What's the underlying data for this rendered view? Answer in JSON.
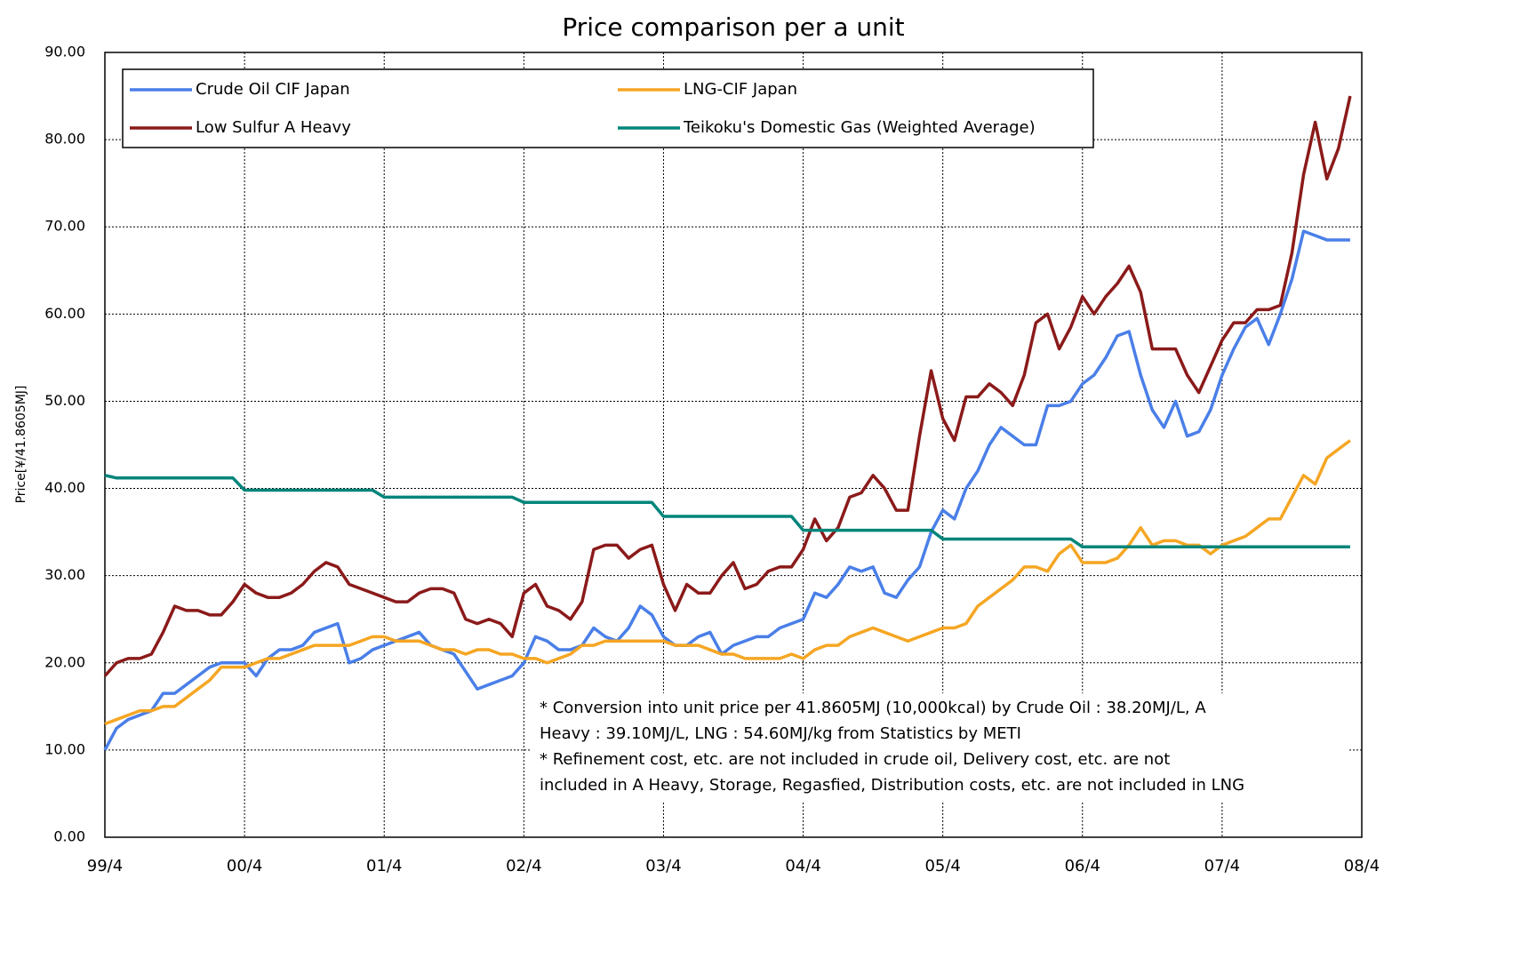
{
  "chart_data": {
    "type": "line",
    "title": "Price comparison per a unit",
    "y_label": "Price[¥/41.8605MJ]",
    "annotation": [
      "* Conversion into unit price per 41.8605MJ (10,000kcal) by Crude Oil : 38.20MJ/L, A",
      "Heavy : 39.10MJ/L, LNG : 54.60MJ/kg from Statistics by METI",
      "* Refinement cost, etc. are not included in crude oil, Delivery cost, etc. are not",
      "included in A Heavy, Storage, Regasfied, Distribution costs, etc. are not included in LNG"
    ],
    "categories": [
      "99/4",
      null,
      null,
      null,
      null,
      null,
      null,
      null,
      null,
      null,
      null,
      null,
      "00/4",
      null,
      null,
      null,
      null,
      null,
      null,
      null,
      null,
      null,
      null,
      null,
      "01/4",
      null,
      null,
      null,
      null,
      null,
      null,
      null,
      null,
      null,
      null,
      null,
      "02/4",
      null,
      null,
      null,
      null,
      null,
      null,
      null,
      null,
      null,
      null,
      null,
      "03/4",
      null,
      null,
      null,
      null,
      null,
      null,
      null,
      null,
      null,
      null,
      null,
      "04/4",
      null,
      null,
      null,
      null,
      null,
      null,
      null,
      null,
      null,
      null,
      null,
      "05/4",
      null,
      null,
      null,
      null,
      null,
      null,
      null,
      null,
      null,
      null,
      null,
      "06/4",
      null,
      null,
      null,
      null,
      null,
      null,
      null,
      null,
      null,
      null,
      null,
      "07/4",
      null,
      null,
      null,
      null,
      null,
      null,
      null,
      null,
      null,
      null,
      null,
      "08/4"
    ],
    "series": [
      {
        "name": "Crude Oil CIF Japan",
        "color": "#4a7fe8",
        "values": [
          10,
          12.5,
          13.5,
          14,
          14.5,
          16.5,
          16.5,
          17.5,
          18.5,
          19.5,
          20,
          20,
          20,
          18.5,
          20.5,
          21.5,
          21.5,
          22,
          23.5,
          24,
          24.5,
          20,
          20.5,
          21.5,
          22,
          22.5,
          23,
          23.5,
          22,
          21.5,
          21,
          19,
          17,
          17.5,
          18,
          18.5,
          20,
          23,
          22.5,
          21.5,
          21.5,
          22,
          24,
          23,
          22.5,
          24,
          26.5,
          25.5,
          23,
          22,
          22,
          23,
          23.5,
          21,
          22,
          22.5,
          23,
          23,
          24,
          24.5,
          25,
          28,
          27.5,
          29,
          31,
          30.5,
          31,
          28,
          27.5,
          29.5,
          31,
          35,
          37.5,
          36.5,
          40,
          42,
          45,
          47,
          46,
          45,
          45,
          49.5,
          49.5,
          50,
          52,
          53,
          55,
          57.5,
          58,
          53,
          49,
          47,
          50,
          46,
          46.5,
          49,
          53,
          56,
          58.5,
          59.5,
          56.5,
          60,
          64,
          69.5,
          69,
          68.5,
          68.5,
          68.5,
          null
        ]
      },
      {
        "name": "LNG-CIF Japan",
        "color": "#f5a623",
        "values": [
          13,
          13.5,
          14,
          14.5,
          14.5,
          15,
          15,
          16,
          17,
          18,
          19.5,
          19.5,
          19.5,
          20,
          20.5,
          20.5,
          21,
          21.5,
          22,
          22,
          22,
          22,
          22.5,
          23,
          23,
          22.5,
          22.5,
          22.5,
          22,
          21.5,
          21.5,
          21,
          21.5,
          21.5,
          21,
          21,
          20.5,
          20.5,
          20,
          20.5,
          21,
          22,
          22,
          22.5,
          22.5,
          22.5,
          22.5,
          22.5,
          22.5,
          22,
          22,
          22,
          21.5,
          21,
          21,
          20.5,
          20.5,
          20.5,
          20.5,
          21,
          20.5,
          21.5,
          22,
          22,
          23,
          23.5,
          24,
          23.5,
          23,
          22.5,
          23,
          23.5,
          24,
          24,
          24.5,
          26.5,
          27.5,
          28.5,
          29.5,
          31,
          31,
          30.5,
          32.5,
          33.5,
          31.5,
          31.5,
          31.5,
          32,
          33.5,
          35.5,
          33.5,
          34,
          34,
          33.5,
          33.5,
          32.5,
          33.5,
          34,
          34.5,
          35.5,
          36.5,
          36.5,
          39,
          41.5,
          40.5,
          43.5,
          44.5,
          45.5,
          null
        ]
      },
      {
        "name": "Low Sulfur A Heavy",
        "color": "#8b1a1a",
        "values": [
          18.5,
          20,
          20.5,
          20.5,
          21,
          23.5,
          26.5,
          26,
          26,
          25.5,
          25.5,
          27,
          29,
          28,
          27.5,
          27.5,
          28,
          29,
          30.5,
          31.5,
          31,
          29,
          28.5,
          28,
          27.5,
          27,
          27,
          28,
          28.5,
          28.5,
          28,
          25,
          24.5,
          25,
          24.5,
          23,
          28,
          29,
          26.5,
          26,
          25,
          27,
          33,
          33.5,
          33.5,
          32,
          33,
          33.5,
          29,
          26,
          29,
          28,
          28,
          30,
          31.5,
          28.5,
          29,
          30.5,
          31,
          31,
          33,
          36.5,
          34,
          35.5,
          39,
          39.5,
          41.5,
          40,
          37.5,
          37.5,
          46,
          53.5,
          48,
          45.5,
          50.5,
          50.5,
          52,
          51,
          49.5,
          53,
          59,
          60,
          56,
          58.5,
          62,
          60,
          62,
          63.5,
          65.5,
          62.5,
          56,
          56,
          56,
          53,
          51,
          54,
          57,
          59,
          59,
          60.5,
          60.5,
          61,
          67,
          76,
          82,
          75.5,
          79,
          85,
          null
        ]
      },
      {
        "name": "Teikoku's Domestic Gas (Weighted Average)",
        "color": "#00857a",
        "values": [
          41.5,
          41.2,
          41.2,
          41.2,
          41.2,
          41.2,
          41.2,
          41.2,
          41.2,
          41.2,
          41.2,
          41.2,
          39.8,
          39.8,
          39.8,
          39.8,
          39.8,
          39.8,
          39.8,
          39.8,
          39.8,
          39.8,
          39.8,
          39.8,
          39,
          39,
          39,
          39,
          39,
          39,
          39,
          39,
          39,
          39,
          39,
          39,
          38.4,
          38.4,
          38.4,
          38.4,
          38.4,
          38.4,
          38.4,
          38.4,
          38.4,
          38.4,
          38.4,
          38.4,
          36.8,
          36.8,
          36.8,
          36.8,
          36.8,
          36.8,
          36.8,
          36.8,
          36.8,
          36.8,
          36.8,
          36.8,
          35.2,
          35.2,
          35.2,
          35.2,
          35.2,
          35.2,
          35.2,
          35.2,
          35.2,
          35.2,
          35.2,
          35.2,
          34.2,
          34.2,
          34.2,
          34.2,
          34.2,
          34.2,
          34.2,
          34.2,
          34.2,
          34.2,
          34.2,
          34.2,
          33.3,
          33.3,
          33.3,
          33.3,
          33.3,
          33.3,
          33.3,
          33.3,
          33.3,
          33.3,
          33.3,
          33.3,
          33.3,
          33.3,
          33.3,
          33.3,
          33.3,
          33.3,
          33.3,
          33.3,
          33.3,
          33.3,
          33.3,
          33.3,
          null
        ]
      }
    ],
    "ylim": [
      0,
      90
    ],
    "yticks": [
      {
        "value": 0,
        "label": "0.00"
      },
      {
        "value": 10,
        "label": "10.00"
      },
      {
        "value": 20,
        "label": "20.00"
      },
      {
        "value": 30,
        "label": "30.00"
      },
      {
        "value": 40,
        "label": "40.00"
      },
      {
        "value": 50,
        "label": "50.00"
      },
      {
        "value": 60,
        "label": "60.00"
      },
      {
        "value": 70,
        "label": "70.00"
      },
      {
        "value": 80,
        "label": "80.00"
      },
      {
        "value": 90,
        "label": "90.00"
      }
    ],
    "grid": true
  }
}
